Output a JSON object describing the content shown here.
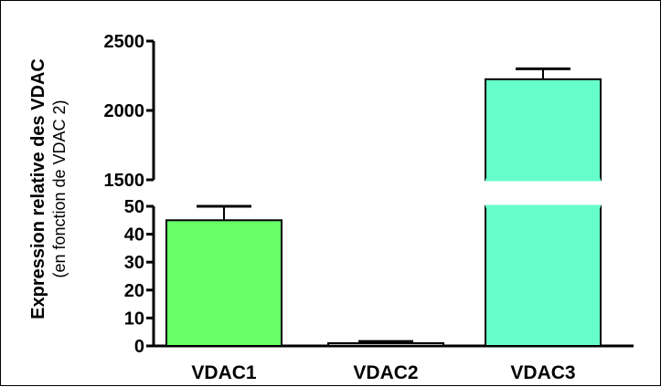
{
  "chart_data": {
    "type": "bar",
    "categories": [
      "VDAC1",
      "VDAC2",
      "VDAC3"
    ],
    "values": [
      45,
      1,
      2225
    ],
    "error_upper": [
      50,
      1.6,
      2300
    ],
    "colors": [
      "#66ff66",
      "#b0b0b0",
      "#66ffcc"
    ],
    "ylabel": "Expression relative des VDAC",
    "ylabel_sub": "(en fonction de VDAC 2)",
    "axis_break": true,
    "lower_segment": {
      "ylim": [
        0,
        50
      ],
      "ticks": [
        0,
        10,
        20,
        30,
        40,
        50
      ]
    },
    "upper_segment": {
      "ylim": [
        1500,
        2500
      ],
      "ticks": [
        1500,
        2000,
        2500
      ]
    },
    "grid": false,
    "legend": "none"
  }
}
